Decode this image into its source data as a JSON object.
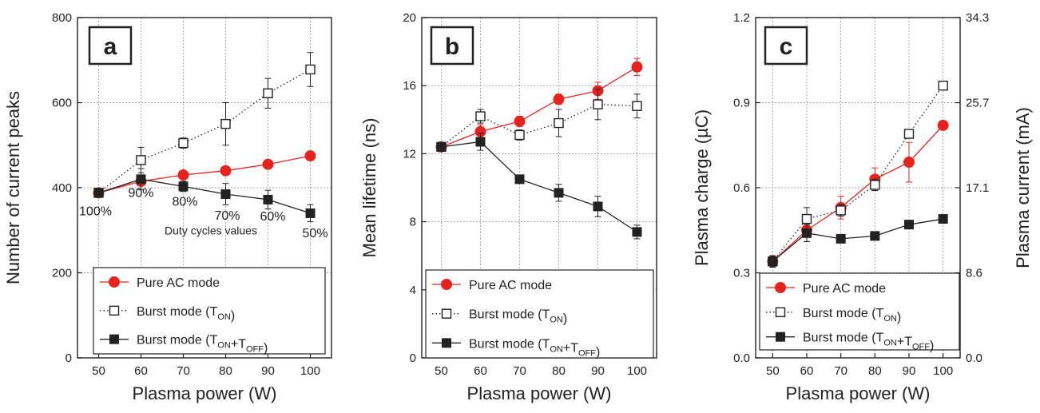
{
  "chart_data": [
    {
      "type": "line",
      "panel_label": "a",
      "xlabel": "Plasma power (W)",
      "ylabel": "Number of current peaks",
      "xlim": [
        45,
        105
      ],
      "ylim": [
        0,
        800
      ],
      "xticks": [
        50,
        60,
        70,
        80,
        90,
        100
      ],
      "yticks": [
        0,
        200,
        400,
        600,
        800
      ],
      "grid": true,
      "legend_position": "bottom",
      "x": [
        50,
        60,
        70,
        80,
        90,
        100
      ],
      "series": [
        {
          "name": "Pure AC mode",
          "marker": "filled-circle",
          "color": "#e8231f",
          "line": "solid",
          "values": [
            388,
            415,
            430,
            440,
            455,
            475
          ],
          "errors": [
            6,
            8,
            8,
            8,
            8,
            8
          ]
        },
        {
          "name": "Burst mode (TON)",
          "marker": "open-square",
          "color": "#222222",
          "line": "dotted",
          "values": [
            388,
            465,
            505,
            550,
            622,
            678
          ],
          "errors": [
            6,
            30,
            12,
            50,
            35,
            40
          ]
        },
        {
          "name": "Burst mode (TON+TOFF)",
          "marker": "filled-square",
          "color": "#222222",
          "line": "solid",
          "values": [
            388,
            420,
            403,
            385,
            372,
            340
          ],
          "errors": [
            6,
            25,
            12,
            25,
            22,
            20
          ]
        }
      ],
      "annotations": {
        "duty_labels": [
          "100%",
          "90%",
          "80%",
          "70%",
          "60%",
          "50%"
        ],
        "caption": "Duty cycles values"
      }
    },
    {
      "type": "line",
      "panel_label": "b",
      "xlabel": "Plasma power (W)",
      "ylabel": "Mean lifetime (ns)",
      "xlim": [
        45,
        105
      ],
      "ylim": [
        0,
        20
      ],
      "xticks": [
        50,
        60,
        70,
        80,
        90,
        100
      ],
      "yticks": [
        0,
        4,
        8,
        12,
        16,
        20
      ],
      "grid": true,
      "legend_position": "bottom",
      "x": [
        50,
        60,
        70,
        80,
        90,
        100
      ],
      "series": [
        {
          "name": "Pure AC mode",
          "marker": "filled-circle",
          "color": "#e8231f",
          "line": "solid",
          "values": [
            12.4,
            13.3,
            13.9,
            15.2,
            15.7,
            17.1
          ],
          "errors": [
            0.2,
            0.4,
            0.3,
            0.3,
            0.5,
            0.5
          ]
        },
        {
          "name": "Burst mode (TON)",
          "marker": "open-square",
          "color": "#222222",
          "line": "dotted",
          "values": [
            12.4,
            14.2,
            13.1,
            13.8,
            14.9,
            14.8
          ],
          "errors": [
            0.2,
            0.4,
            0.3,
            0.8,
            0.9,
            0.7
          ]
        },
        {
          "name": "Burst mode (TON+TOFF)",
          "marker": "filled-square",
          "color": "#222222",
          "line": "solid",
          "values": [
            12.4,
            12.7,
            10.5,
            9.7,
            8.9,
            7.4
          ],
          "errors": [
            0.2,
            0.5,
            0.2,
            0.5,
            0.6,
            0.4
          ]
        }
      ]
    },
    {
      "type": "line",
      "panel_label": "c",
      "xlabel": "Plasma power (W)",
      "ylabel": "Plasma charge (µC)",
      "y2label": "Plasma current (mA)",
      "xlim": [
        45,
        105
      ],
      "ylim": [
        0,
        1.2
      ],
      "xticks": [
        50,
        60,
        70,
        80,
        90,
        100
      ],
      "yticks": [
        0.0,
        0.3,
        0.6,
        0.9,
        1.2
      ],
      "ytick_labels": [
        "0.0",
        "0.3",
        "0.6",
        "0.9",
        "1.2"
      ],
      "y2tick_labels": [
        "0.0",
        "8.6",
        "17.1",
        "25.7",
        "34.3"
      ],
      "grid": true,
      "legend_position": "bottom",
      "x": [
        50,
        60,
        70,
        80,
        90,
        100
      ],
      "series": [
        {
          "name": "Pure AC mode",
          "marker": "filled-circle",
          "color": "#e8231f",
          "line": "solid",
          "values": [
            0.34,
            0.45,
            0.53,
            0.63,
            0.69,
            0.82
          ],
          "errors": [
            0.02,
            0.04,
            0.04,
            0.04,
            0.07,
            0.01
          ]
        },
        {
          "name": "Burst mode (TON)",
          "marker": "open-square",
          "color": "#222222",
          "line": "dotted",
          "values": [
            0.34,
            0.49,
            0.52,
            0.61,
            0.79,
            0.96
          ],
          "errors": [
            0.02,
            0.04,
            0.02,
            0.02,
            0.01,
            0.01
          ]
        },
        {
          "name": "Burst mode (TON+TOFF)",
          "marker": "filled-square",
          "color": "#222222",
          "line": "solid",
          "values": [
            0.34,
            0.44,
            0.42,
            0.43,
            0.47,
            0.49
          ],
          "errors": [
            0.02,
            0.03,
            0.01,
            0.01,
            0.01,
            0.01
          ]
        }
      ]
    }
  ]
}
